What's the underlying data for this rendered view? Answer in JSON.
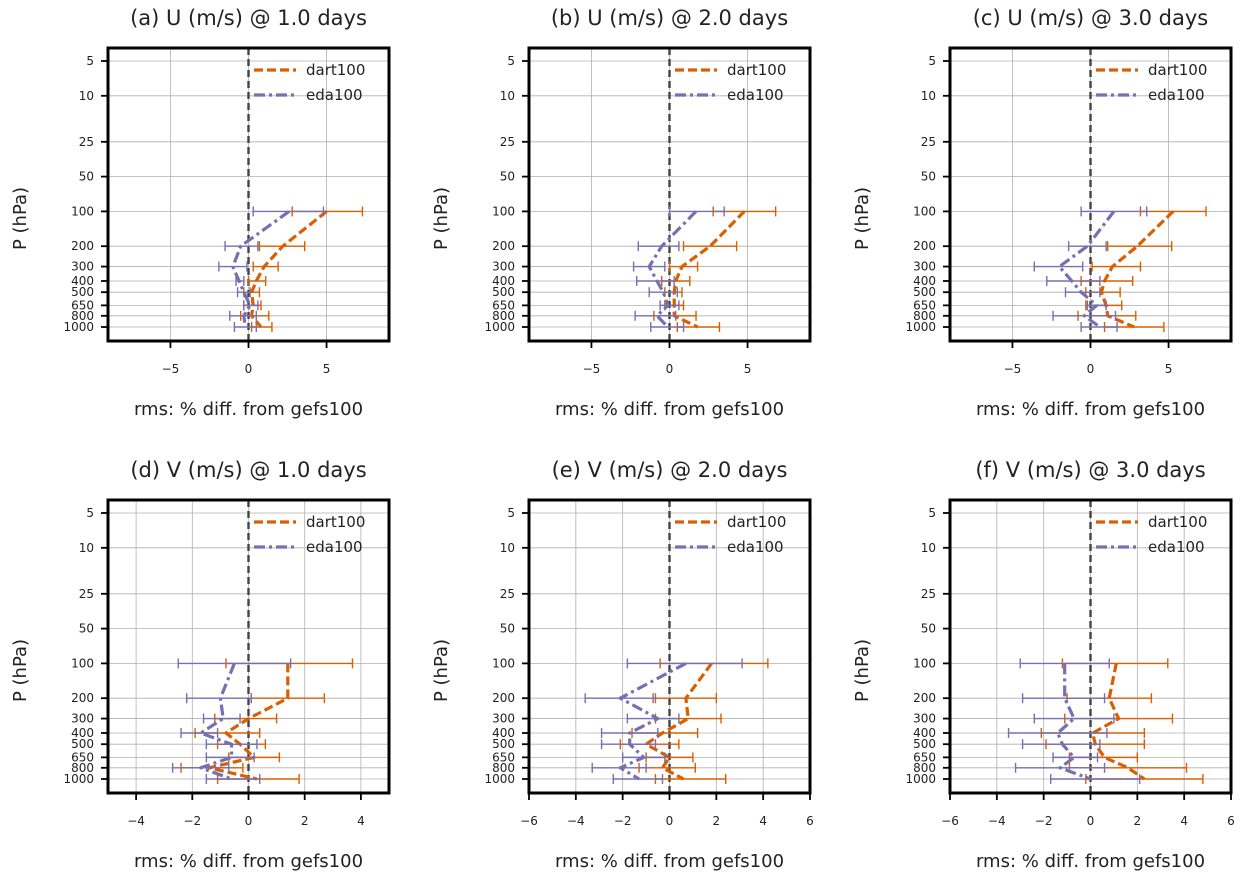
{
  "colors": {
    "dart100": "#d95f02",
    "eda100": "#7570b3",
    "zero_line": "#444444",
    "grid": "#b0b0b0"
  },
  "chart_data": [
    {
      "type": "line",
      "title": "(a) U (m/s) @ 1.0 days",
      "xlabel": "rms: % diff. from gefs100",
      "ylabel": "P (hPa)",
      "xlim": [
        -9,
        9
      ],
      "xticks": [
        -5,
        0,
        5
      ],
      "y_scale": "log",
      "y_inverted": true,
      "yticks": [
        5,
        10,
        25,
        50,
        100,
        200,
        300,
        400,
        500,
        650,
        800,
        1000
      ],
      "grid": true,
      "legend": "top-right",
      "series": [
        {
          "name": "dart100",
          "line_style": "dashed",
          "x": [
            5.0,
            2.2,
            1.0,
            0.5,
            0.2,
            0.3,
            0.2,
            0.8
          ],
          "xerr_low": [
            2.8,
            0.7,
            0.3,
            0.0,
            -0.3,
            -0.3,
            -0.5,
            0.2
          ],
          "xerr_high": [
            7.3,
            3.6,
            1.9,
            1.1,
            0.7,
            0.8,
            1.3,
            1.5
          ]
        },
        {
          "name": "eda100",
          "line_style": "dashdot",
          "x": [
            2.6,
            -0.5,
            -1.0,
            -0.6,
            -0.3,
            0.1,
            -0.3,
            -0.2
          ],
          "xerr_low": [
            0.3,
            -1.5,
            -1.9,
            -0.8,
            -0.7,
            -0.3,
            -1.2,
            -0.9
          ],
          "xerr_high": [
            4.8,
            0.6,
            -0.1,
            -0.3,
            0.1,
            0.6,
            0.5,
            0.5
          ]
        }
      ]
    },
    {
      "type": "line",
      "title": "(b) U (m/s) @ 2.0 days",
      "xlabel": "rms: % diff. from gefs100",
      "ylabel": "P (hPa)",
      "xlim": [
        -9,
        9
      ],
      "xticks": [
        -5,
        0,
        5
      ],
      "y_scale": "log",
      "y_inverted": true,
      "yticks": [
        5,
        10,
        25,
        50,
        100,
        200,
        300,
        400,
        500,
        650,
        800,
        1000
      ],
      "grid": true,
      "legend": "top-right",
      "series": [
        {
          "name": "dart100",
          "line_style": "dashed",
          "x": [
            4.8,
            2.6,
            0.8,
            0.4,
            0.3,
            0.3,
            0.3,
            1.8
          ],
          "xerr_low": [
            2.8,
            0.9,
            0.0,
            -0.5,
            -0.3,
            -0.3,
            -1.0,
            0.5
          ],
          "xerr_high": [
            6.8,
            4.3,
            1.8,
            1.3,
            0.8,
            0.9,
            1.7,
            3.2
          ]
        },
        {
          "name": "eda100",
          "line_style": "dashdot",
          "x": [
            1.7,
            -0.5,
            -1.3,
            -0.8,
            -0.4,
            -0.1,
            -0.8,
            -0.1
          ],
          "xerr_low": [
            0.0,
            -2.0,
            -2.3,
            -2.1,
            -1.3,
            -0.6,
            -2.2,
            -1.2
          ],
          "xerr_high": [
            3.5,
            0.6,
            -0.3,
            0.3,
            0.5,
            0.6,
            0.4,
            0.9
          ]
        }
      ]
    },
    {
      "type": "line",
      "title": "(c) U (m/s) @ 3.0 days",
      "xlabel": "rms: % diff. from gefs100",
      "ylabel": "P (hPa)",
      "xlim": [
        -9,
        9
      ],
      "xticks": [
        -5,
        0,
        5
      ],
      "y_scale": "log",
      "y_inverted": true,
      "yticks": [
        5,
        10,
        25,
        50,
        100,
        200,
        300,
        400,
        500,
        650,
        800,
        1000
      ],
      "grid": true,
      "legend": "top-right",
      "series": [
        {
          "name": "dart100",
          "line_style": "dashed",
          "x": [
            5.3,
            3.0,
            1.4,
            0.9,
            0.7,
            1.0,
            1.1,
            2.8
          ],
          "xerr_low": [
            3.2,
            1.1,
            0.1,
            -0.6,
            -0.3,
            -0.2,
            -0.8,
            0.9
          ],
          "xerr_high": [
            7.4,
            5.2,
            3.2,
            2.7,
            1.9,
            2.0,
            2.9,
            4.7
          ]
        },
        {
          "name": "eda100",
          "line_style": "dashdot",
          "x": [
            1.5,
            -0.2,
            -2.0,
            -1.2,
            -0.6,
            0.4,
            -0.4,
            0.6
          ],
          "xerr_low": [
            -0.6,
            -1.4,
            -3.6,
            -2.8,
            -1.6,
            -0.3,
            -2.4,
            -0.6
          ],
          "xerr_high": [
            3.6,
            1.0,
            -0.5,
            0.6,
            0.6,
            1.0,
            1.6,
            1.7
          ]
        }
      ]
    },
    {
      "type": "line",
      "title": "(d) V (m/s) @ 1.0 days",
      "xlabel": "rms: % diff. from gefs100",
      "ylabel": "P (hPa)",
      "xlim": [
        -5,
        5
      ],
      "xticks": [
        -4,
        -2,
        0,
        2,
        4
      ],
      "y_scale": "log",
      "y_inverted": true,
      "yticks": [
        5,
        10,
        25,
        50,
        100,
        200,
        300,
        400,
        500,
        650,
        800,
        1000
      ],
      "grid": true,
      "legend": "top-right",
      "series": [
        {
          "name": "dart100",
          "line_style": "dashed",
          "x": [
            1.4,
            1.4,
            0.0,
            -0.8,
            -0.3,
            0.2,
            -1.4,
            0.3
          ],
          "xerr_low": [
            -0.8,
            0.1,
            -1.2,
            -1.9,
            -1.1,
            -0.7,
            -2.4,
            -1.1
          ],
          "xerr_high": [
            3.7,
            2.7,
            1.0,
            0.4,
            0.6,
            1.1,
            -0.2,
            1.8
          ]
        },
        {
          "name": "eda100",
          "line_style": "dashdot",
          "x": [
            -0.5,
            -1.0,
            -0.9,
            -1.7,
            -0.6,
            -0.6,
            -1.7,
            -0.6
          ],
          "xerr_low": [
            -2.5,
            -2.2,
            -1.6,
            -2.4,
            -1.5,
            -1.5,
            -2.7,
            -1.5
          ],
          "xerr_high": [
            1.5,
            0.1,
            -0.3,
            -1.1,
            0.3,
            0.2,
            -0.7,
            0.4
          ]
        }
      ]
    },
    {
      "type": "line",
      "title": "(e) V (m/s) @ 2.0 days",
      "xlabel": "rms: % diff. from gefs100",
      "ylabel": "P (hPa)",
      "xlim": [
        -6,
        6
      ],
      "xticks": [
        -6,
        -4,
        -2,
        0,
        2,
        4,
        6
      ],
      "y_scale": "log",
      "y_inverted": true,
      "yticks": [
        5,
        10,
        25,
        50,
        100,
        200,
        300,
        400,
        500,
        650,
        800,
        1000
      ],
      "grid": true,
      "legend": "top-right",
      "series": [
        {
          "name": "dart100",
          "line_style": "dashed",
          "x": [
            1.8,
            0.7,
            0.8,
            -0.3,
            -1.0,
            0.0,
            -0.3,
            0.6
          ],
          "xerr_low": [
            -0.4,
            -0.7,
            -0.6,
            -1.6,
            -2.1,
            -1.0,
            -1.3,
            -0.6
          ],
          "xerr_high": [
            4.2,
            2.0,
            2.2,
            1.2,
            0.4,
            1.0,
            1.1,
            2.4
          ]
        },
        {
          "name": "eda100",
          "line_style": "dashdot",
          "x": [
            0.7,
            -2.1,
            -0.5,
            -1.7,
            -1.7,
            -1.1,
            -2.1,
            -1.3
          ],
          "xerr_low": [
            -1.8,
            -3.6,
            -1.8,
            -2.9,
            -2.9,
            -2.0,
            -3.3,
            -2.4
          ],
          "xerr_high": [
            3.1,
            -0.6,
            0.4,
            -0.5,
            -0.6,
            -0.2,
            -1.0,
            -0.3
          ]
        }
      ]
    },
    {
      "type": "line",
      "title": "(f) V (m/s) @ 3.0 days",
      "xlabel": "rms: % diff. from gefs100",
      "ylabel": "P (hPa)",
      "xlim": [
        -6,
        6
      ],
      "xticks": [
        -6,
        -4,
        -2,
        0,
        2,
        4,
        6
      ],
      "y_scale": "log",
      "y_inverted": true,
      "yticks": [
        5,
        10,
        25,
        50,
        100,
        200,
        300,
        400,
        500,
        650,
        800,
        1000
      ],
      "grid": true,
      "legend": "top-right",
      "series": [
        {
          "name": "dart100",
          "line_style": "dashed",
          "x": [
            1.1,
            0.8,
            1.2,
            0.1,
            0.2,
            0.6,
            1.6,
            2.3
          ],
          "xerr_low": [
            -1.2,
            -1.0,
            -1.1,
            -2.1,
            -1.9,
            -0.9,
            -0.9,
            -0.2
          ],
          "xerr_high": [
            3.3,
            2.6,
            3.5,
            2.3,
            2.3,
            2.0,
            4.1,
            4.8
          ]
        },
        {
          "name": "eda100",
          "line_style": "dashdot",
          "x": [
            -1.1,
            -1.1,
            -0.7,
            -1.4,
            -1.2,
            -0.7,
            -1.3,
            0.0
          ],
          "xerr_low": [
            -3.0,
            -2.9,
            -2.4,
            -3.5,
            -2.9,
            -1.6,
            -3.2,
            -1.7
          ],
          "xerr_high": [
            0.8,
            0.6,
            1.0,
            0.7,
            0.4,
            0.3,
            0.6,
            2.1
          ]
        }
      ]
    }
  ]
}
